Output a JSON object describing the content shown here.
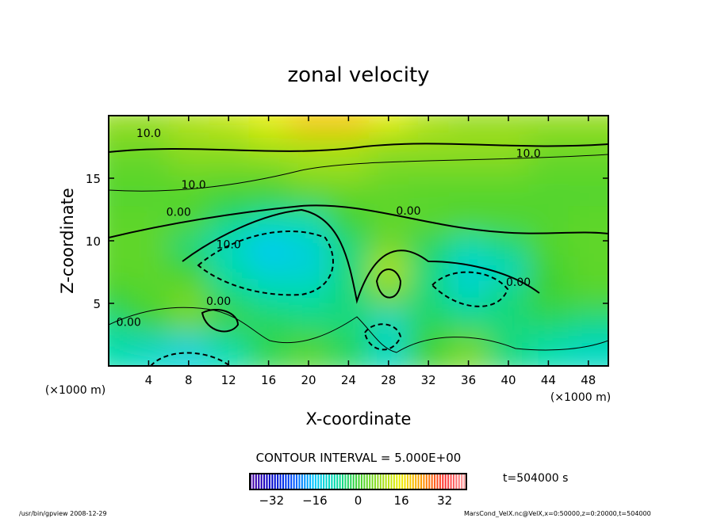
{
  "chart_data": {
    "type": "heatmap",
    "title": "zonal velocity",
    "xlabel": "X-coordinate",
    "ylabel": "Z-coordinate",
    "x_unit": "(×1000 m)",
    "y_unit": "(×1000 m)",
    "xlim": [
      0,
      50
    ],
    "ylim": [
      0,
      20
    ],
    "x_ticks": [
      "4",
      "8",
      "12",
      "16",
      "20",
      "24",
      "28",
      "32",
      "36",
      "40",
      "44",
      "48"
    ],
    "y_ticks": [
      "5",
      "10",
      "15"
    ],
    "grid_x": [
      2,
      6,
      10,
      14,
      18,
      22,
      26,
      30,
      34,
      38,
      42,
      46,
      50
    ],
    "grid_z": [
      19,
      17,
      15,
      13,
      11,
      9,
      7,
      5,
      3,
      1
    ],
    "values": [
      [
        8,
        8,
        10,
        12,
        15,
        20,
        20,
        15,
        10,
        8,
        8,
        8,
        8
      ],
      [
        5,
        5,
        8,
        8,
        10,
        10,
        10,
        8,
        8,
        8,
        8,
        5,
        5
      ],
      [
        3,
        3,
        5,
        5,
        5,
        8,
        8,
        5,
        5,
        5,
        5,
        3,
        3
      ],
      [
        2,
        2,
        2,
        0,
        0,
        2,
        3,
        3,
        2,
        2,
        2,
        2,
        2
      ],
      [
        3,
        3,
        2,
        -5,
        -8,
        -8,
        0,
        3,
        3,
        2,
        2,
        2,
        3
      ],
      [
        3,
        3,
        -5,
        -10,
        -15,
        -12,
        -5,
        5,
        -3,
        -8,
        -5,
        2,
        3
      ],
      [
        3,
        3,
        0,
        -8,
        -12,
        -12,
        -5,
        10,
        -5,
        -12,
        -10,
        0,
        3
      ],
      [
        0,
        2,
        5,
        -5,
        -8,
        -8,
        -5,
        5,
        -5,
        -10,
        -5,
        0,
        2
      ],
      [
        -5,
        0,
        5,
        0,
        -3,
        -5,
        -5,
        -10,
        -3,
        -5,
        -5,
        -3,
        -5
      ],
      [
        -8,
        -10,
        -12,
        -8,
        -2,
        2,
        -3,
        -10,
        0,
        5,
        -5,
        -8,
        -10
      ]
    ],
    "contour_labels": [
      {
        "text": "10.0",
        "x": 4,
        "z": 18.6
      },
      {
        "text": "10.0",
        "x": 42,
        "z": 17.0
      },
      {
        "text": "10.0",
        "x": 8.5,
        "z": 14.5
      },
      {
        "text": "0.00",
        "x": 7,
        "z": 12.3
      },
      {
        "text": "0.00",
        "x": 30,
        "z": 12.4
      },
      {
        "text": "10.0",
        "x": 12,
        "z": 9.7
      },
      {
        "text": "0.00",
        "x": 41,
        "z": 6.7
      },
      {
        "text": "0.00",
        "x": 11,
        "z": 5.2
      },
      {
        "text": "0.00",
        "x": 2,
        "z": 3.5
      }
    ],
    "contour_interval": "CONTOUR INTERVAL = 5.000E+00",
    "colorbar_ticks": [
      "−32",
      "−16",
      "0",
      "16",
      "32"
    ],
    "colorbar_range": [
      -40,
      40
    ]
  },
  "time_label": "t=504000 s",
  "footer_left": "/usr/bin/gpview   2008-12-29",
  "footer_right": "MarsCond_VelX.nc@VelX,x=0:50000,z=0:20000,t=504000"
}
